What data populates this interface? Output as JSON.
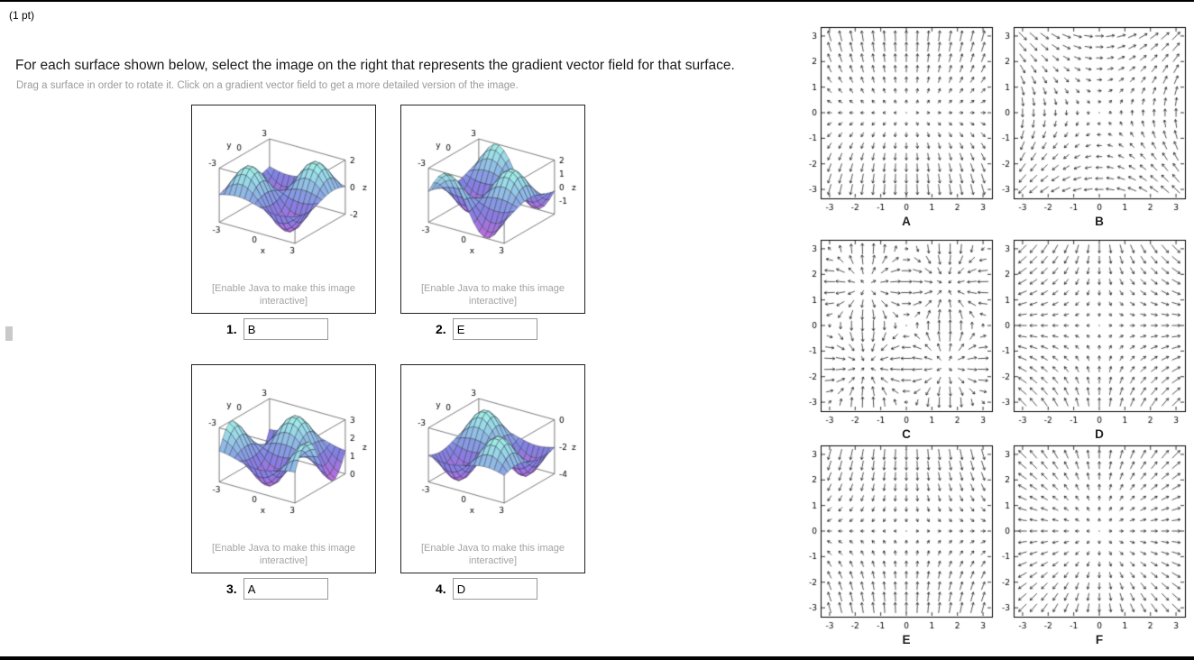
{
  "page": {
    "points_label": "(1 pt)"
  },
  "instructions": {
    "main": "For each surface shown below, select the image on the right that represents the gradient vector field for that surface.",
    "sub": "Drag a surface in order to rotate it. Click on a gradient vector field to get a more detailed version of the image."
  },
  "surface_caption": "[Enable Java to make this image interactive]",
  "surface_axes": {
    "x": "x",
    "y": "y",
    "z": "z"
  },
  "surfaces": [
    {
      "number": "1.",
      "answer": "B",
      "pattern": "s1",
      "xticks": [
        -3,
        0,
        3
      ],
      "yticks": [
        -3,
        0,
        3
      ],
      "zticks": [
        2,
        0,
        -2
      ],
      "zrange": [
        -2,
        2
      ]
    },
    {
      "number": "2.",
      "answer": "E",
      "pattern": "s2",
      "xticks": [
        -3,
        0,
        3
      ],
      "yticks": [
        -3,
        0,
        3
      ],
      "zticks": [
        2,
        1,
        0,
        -1
      ],
      "zrange": [
        -2,
        2
      ]
    },
    {
      "number": "3.",
      "answer": "A",
      "pattern": "s3",
      "xticks": [
        -3,
        0,
        3
      ],
      "yticks": [
        -3,
        0,
        3
      ],
      "zticks": [
        3,
        2,
        1,
        0
      ],
      "zrange": [
        0,
        3
      ]
    },
    {
      "number": "4.",
      "answer": "D",
      "pattern": "s4",
      "xticks": [
        -3,
        0,
        3
      ],
      "yticks": [
        -3,
        0,
        3
      ],
      "zticks": [
        0,
        -2,
        -4
      ],
      "zrange": [
        -4,
        0
      ]
    }
  ],
  "vector_fields": {
    "ticks": [
      -3,
      -2,
      -1,
      0,
      1,
      2,
      3
    ],
    "panels": [
      {
        "label": "A",
        "pattern": "vertical-diverging"
      },
      {
        "label": "B",
        "pattern": "diagonal-saddle"
      },
      {
        "label": "C",
        "pattern": "periodic-swirl"
      },
      {
        "label": "D",
        "pattern": "axis-saddle"
      },
      {
        "label": "E",
        "pattern": "vertical-converging"
      },
      {
        "label": "F",
        "pattern": "radial"
      }
    ]
  }
}
